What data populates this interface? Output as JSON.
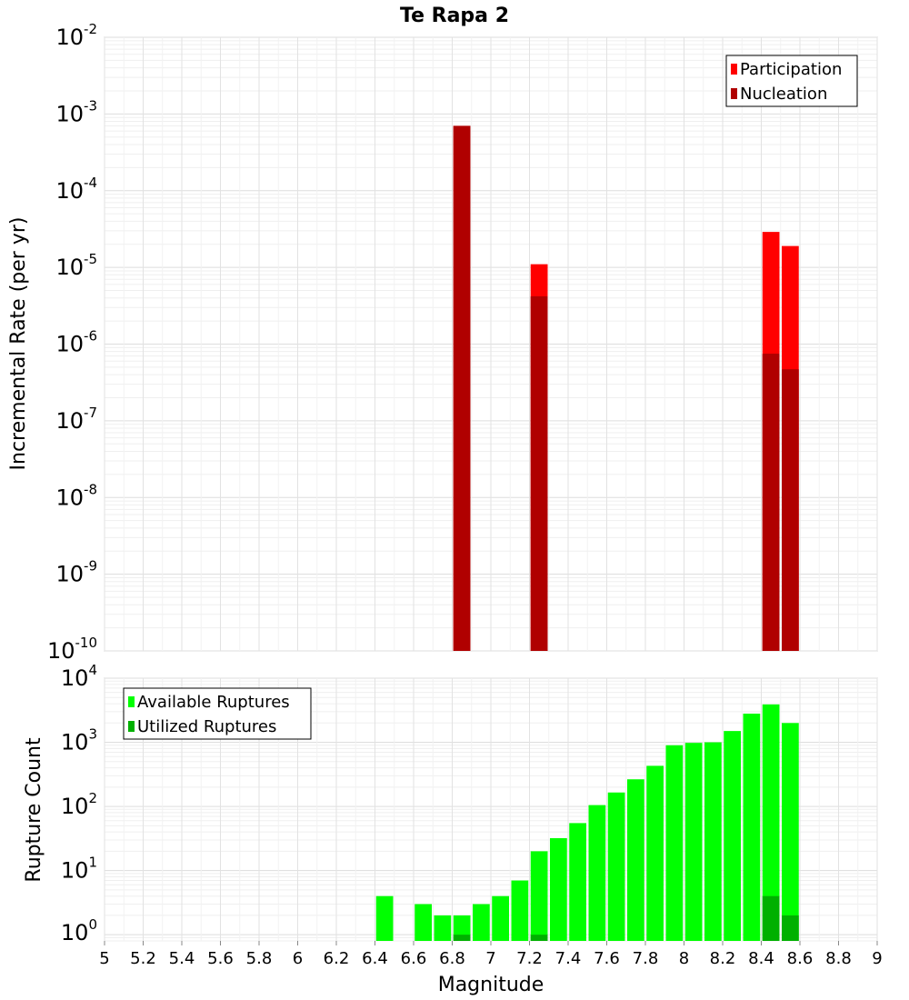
{
  "chart_data": [
    {
      "type": "bar",
      "title": "Te Rapa 2",
      "xlabel": "",
      "ylabel": "Incremental Rate (per yr)",
      "yscale": "log",
      "ylim": [
        1e-10,
        0.01
      ],
      "xlim": [
        5,
        9
      ],
      "grid": true,
      "legend_position": "top-right",
      "bin_width": 0.1,
      "x": [
        6.85,
        7.25,
        8.45,
        8.55
      ],
      "series": [
        {
          "name": "Participation",
          "color": "#ff0000",
          "values": [
            0.0007,
            1.1e-05,
            2.9e-05,
            1.9e-05
          ]
        },
        {
          "name": "Nucleation",
          "color": "#b00000",
          "values": [
            0.0007,
            4.2e-06,
            7.5e-07,
            4.7e-07
          ]
        }
      ],
      "ytick_labels": [
        {
          "base": "10",
          "exp": "-2"
        },
        {
          "base": "10",
          "exp": "-3"
        },
        {
          "base": "10",
          "exp": "-4"
        },
        {
          "base": "10",
          "exp": "-5"
        },
        {
          "base": "10",
          "exp": "-6"
        },
        {
          "base": "10",
          "exp": "-7"
        },
        {
          "base": "10",
          "exp": "-8"
        },
        {
          "base": "10",
          "exp": "-9"
        },
        {
          "base": "10",
          "exp": "-10"
        }
      ]
    },
    {
      "type": "bar",
      "title": "",
      "xlabel": "Magnitude",
      "ylabel": "Rupture Count",
      "yscale": "log",
      "ylim": [
        0.8,
        10000.0
      ],
      "xlim": [
        5,
        9
      ],
      "grid": true,
      "legend_position": "top-left",
      "bin_width": 0.1,
      "x": [
        6.45,
        6.65,
        6.75,
        6.85,
        6.95,
        7.05,
        7.15,
        7.25,
        7.35,
        7.45,
        7.55,
        7.65,
        7.75,
        7.85,
        7.95,
        8.05,
        8.15,
        8.25,
        8.35,
        8.45,
        8.55
      ],
      "series": [
        {
          "name": "Available Ruptures",
          "color": "#00ff00",
          "values": [
            4,
            3,
            2,
            2,
            3,
            4,
            7,
            20,
            32,
            55,
            105,
            165,
            265,
            430,
            900,
            980,
            1000,
            1500,
            2800,
            3900,
            2000
          ]
        },
        {
          "name": "Utilized Ruptures",
          "color": "#00b000",
          "x": [
            6.85,
            7.25,
            8.45,
            8.55
          ],
          "values": [
            1,
            1,
            4,
            2
          ]
        }
      ],
      "ytick_labels": [
        {
          "base": "10",
          "exp": "4"
        },
        {
          "base": "10",
          "exp": "3"
        },
        {
          "base": "10",
          "exp": "2"
        },
        {
          "base": "10",
          "exp": "1"
        },
        {
          "base": "10",
          "exp": "0"
        }
      ],
      "xtick_labels": [
        "5",
        "5.2",
        "5.4",
        "5.6",
        "5.8",
        "6",
        "6.2",
        "6.4",
        "6.6",
        "6.8",
        "7",
        "7.2",
        "7.4",
        "7.6",
        "7.8",
        "8",
        "8.2",
        "8.4",
        "8.6",
        "8.8",
        "9"
      ]
    }
  ]
}
